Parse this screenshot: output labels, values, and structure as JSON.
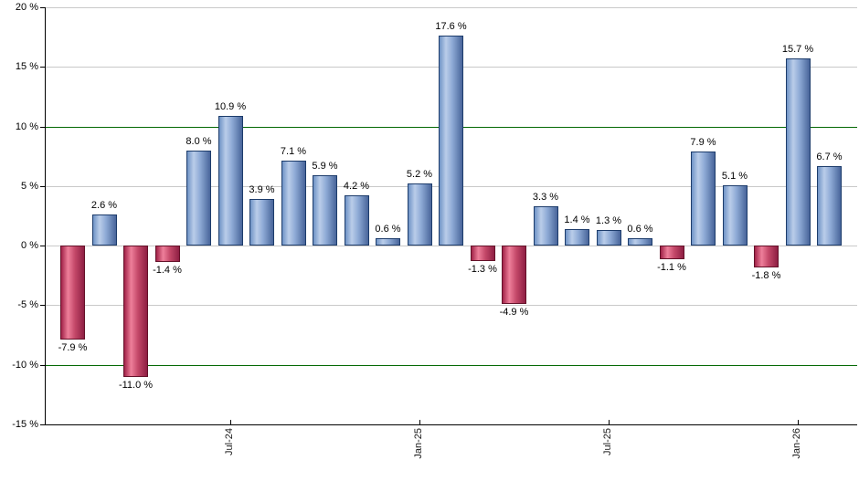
{
  "chart_data": {
    "type": "bar",
    "title": "",
    "xlabel": "",
    "ylabel": "",
    "ylim": [
      -15,
      20
    ],
    "grid": true,
    "legend": false,
    "values": [
      -7.9,
      2.6,
      -11.0,
      -1.4,
      8.0,
      10.9,
      3.9,
      7.1,
      5.9,
      4.2,
      0.6,
      5.2,
      17.6,
      -1.3,
      -4.9,
      3.3,
      1.4,
      1.3,
      0.6,
      -1.1,
      7.9,
      5.1,
      -1.8,
      15.7,
      6.7
    ],
    "value_labels": [
      "-7.9 %",
      "2.6 %",
      "-11.0 %",
      "-1.4 %",
      "8.0 %",
      "10.9 %",
      "3.9 %",
      "7.1 %",
      "5.9 %",
      "4.2 %",
      "0.6 %",
      "5.2 %",
      "17.6 %",
      "-1.3 %",
      "-4.9 %",
      "3.3 %",
      "1.4 %",
      "1.3 %",
      "0.6 %",
      "-1.1 %",
      "7.9 %",
      "5.1 %",
      "-1.8 %",
      "15.7 %",
      "6.7 %"
    ],
    "value_label_suffix": " %",
    "y_ticks": [
      20,
      15,
      10,
      5,
      0,
      -5,
      -10,
      -15
    ],
    "y_tick_labels": [
      "20 %",
      "15 %",
      "10 %",
      "5 %",
      "0 %",
      "-5 %",
      "-10 %",
      "-15 %"
    ],
    "x_ticks": [
      {
        "bar_index": 5,
        "label": "Jul-24"
      },
      {
        "bar_index": 11,
        "label": "Jan-25"
      },
      {
        "bar_index": 17,
        "label": "Jul-25"
      },
      {
        "bar_index": 23,
        "label": "Jan-26"
      }
    ],
    "reference_lines": [
      10,
      -10
    ],
    "colors": {
      "positive_bar": "#7d9cd0",
      "positive_bar_light": "#bacde9",
      "positive_bar_dark": "#48659a",
      "negative_bar": "#c44869",
      "negative_bar_light": "#ee7f9a",
      "negative_bar_dark": "#8e1f43",
      "reference_line": "#046904",
      "gridline": "#c9c9c9",
      "axis": "#000000",
      "label_text": "#000000"
    }
  }
}
